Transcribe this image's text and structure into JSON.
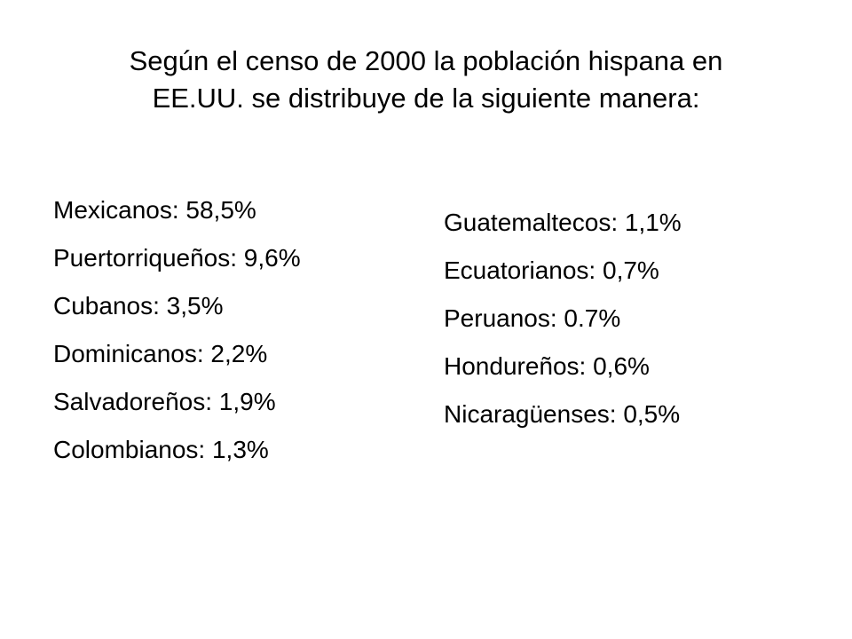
{
  "title": {
    "line1": "Según el censo de 2000 la población hispana en",
    "line2": "EE.UU. se distribuye de la siguiente manera:"
  },
  "left_column": [
    "Mexicanos: 58,5%",
    "Puertorriqueños: 9,6%",
    "Cubanos: 3,5%",
    "Dominicanos: 2,2%",
    "Salvadoreños: 1,9%",
    "Colombianos: 1,3%"
  ],
  "right_column": [
    "Guatemaltecos: 1,1%",
    "Ecuatorianos: 0,7%",
    "Peruanos: 0.7%",
    "Hondureños: 0,6%",
    "Nicaragüenses: 0,5%"
  ]
}
